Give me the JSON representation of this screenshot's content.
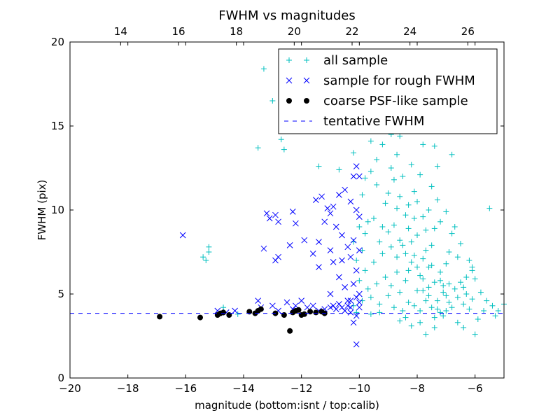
{
  "chart_data": {
    "type": "scatter",
    "title": "FWHM vs magnitudes",
    "xlabel": "magnitude (bottom:isnt / top:calib)",
    "ylabel": "FWHM (pix)",
    "xlim": [
      -20,
      -5
    ],
    "ylim": [
      0,
      20
    ],
    "xticks": [
      "-20",
      "-18",
      "-16",
      "-14",
      "-12",
      "-10",
      "-8",
      "-6"
    ],
    "xtick_values": [
      -20,
      -18,
      -16,
      -14,
      -12,
      -10,
      -8,
      -6
    ],
    "yticks": [
      "0",
      "5",
      "10",
      "15",
      "20"
    ],
    "ytick_values": [
      0,
      5,
      10,
      15,
      20
    ],
    "top_axis": {
      "ticks": [
        "14",
        "16",
        "18",
        "20",
        "22",
        "24",
        "26"
      ],
      "tick_values": [
        14,
        16,
        18,
        20,
        22,
        24,
        26
      ],
      "offset": 32.25
    },
    "legend": {
      "position": "top-right",
      "entries": [
        {
          "label": "all sample",
          "marker": "plus",
          "color": "#00bfbf"
        },
        {
          "label": "sample for rough FWHM",
          "marker": "x",
          "color": "#0000ff"
        },
        {
          "label": "coarse PSF-like sample",
          "marker": "dot",
          "color": "#000000"
        },
        {
          "label": "tentative FWHM",
          "marker": "dashed-line",
          "color": "#0000ff"
        }
      ]
    },
    "colors": {
      "all": "#00bfbf",
      "rough": "#0000ff",
      "psf": "#000000",
      "line": "#0000ff"
    },
    "tentative_fwhm": 3.85,
    "series": [
      {
        "name": "all sample",
        "points": [
          [
            -13.3,
            18.4
          ],
          [
            -13.0,
            16.5
          ],
          [
            -12.7,
            14.2
          ],
          [
            -13.5,
            13.7
          ],
          [
            -12.6,
            13.6
          ],
          [
            -11.4,
            12.6
          ],
          [
            -10.7,
            12.4
          ],
          [
            -10.2,
            13.4
          ],
          [
            -9.9,
            14.7
          ],
          [
            -9.6,
            14.1
          ],
          [
            -9.2,
            13.9
          ],
          [
            -8.9,
            14.5
          ],
          [
            -8.6,
            14.4
          ],
          [
            -8.3,
            16.4
          ],
          [
            -8.0,
            15.0
          ],
          [
            -7.8,
            13.9
          ],
          [
            -7.4,
            13.8
          ],
          [
            -7.3,
            12.6
          ],
          [
            -6.8,
            13.3
          ],
          [
            -5.5,
            10.1
          ],
          [
            -15.4,
            7.2
          ],
          [
            -15.2,
            7.5
          ],
          [
            -15.2,
            7.8
          ],
          [
            -15.3,
            7.0
          ],
          [
            -14.7,
            4.2
          ],
          [
            -14.2,
            3.8
          ],
          [
            -6.1,
            6.6
          ],
          [
            -6.1,
            6.4
          ],
          [
            -6.9,
            7.5
          ],
          [
            -7.0,
            6.8
          ],
          [
            -5.4,
            4.3
          ],
          [
            -5.2,
            4.0
          ],
          [
            -5.0,
            4.4
          ],
          [
            -6.4,
            3.0
          ],
          [
            -7.7,
            2.6
          ],
          [
            -6.0,
            2.6
          ],
          [
            -10.0,
            9.0
          ],
          [
            -9.8,
            8.6
          ],
          [
            -9.7,
            9.3
          ],
          [
            -9.5,
            9.5
          ],
          [
            -9.3,
            8.1
          ],
          [
            -9.1,
            10.4
          ],
          [
            -9.0,
            8.7
          ],
          [
            -8.8,
            9.1
          ],
          [
            -8.7,
            7.2
          ],
          [
            -8.6,
            10.8
          ],
          [
            -8.5,
            7.9
          ],
          [
            -8.4,
            9.7
          ],
          [
            -8.3,
            6.4
          ],
          [
            -8.2,
            8.1
          ],
          [
            -8.1,
            7.3
          ],
          [
            -8.0,
            10.5
          ],
          [
            -7.9,
            6.1
          ],
          [
            -7.8,
            7.1
          ],
          [
            -7.7,
            8.8
          ],
          [
            -7.6,
            5.4
          ],
          [
            -7.5,
            7.9
          ],
          [
            -7.4,
            5.7
          ],
          [
            -7.3,
            4.6
          ],
          [
            -7.2,
            6.3
          ],
          [
            -7.1,
            5.1
          ],
          [
            -7.0,
            4.9
          ],
          [
            -6.9,
            5.6
          ],
          [
            -6.8,
            4.2
          ],
          [
            -6.7,
            5.3
          ],
          [
            -6.6,
            4.8
          ],
          [
            -6.5,
            5.7
          ],
          [
            -6.4,
            4.4
          ],
          [
            -6.3,
            5.0
          ],
          [
            -6.2,
            4.1
          ],
          [
            -9.9,
            7.6
          ],
          [
            -9.8,
            6.4
          ],
          [
            -9.7,
            5.3
          ],
          [
            -9.6,
            4.8
          ],
          [
            -9.5,
            6.9
          ],
          [
            -9.4,
            5.6
          ],
          [
            -9.3,
            4.4
          ],
          [
            -9.2,
            7.4
          ],
          [
            -9.1,
            6.0
          ],
          [
            -9.0,
            4.9
          ],
          [
            -8.9,
            5.5
          ],
          [
            -8.8,
            4.2
          ],
          [
            -8.7,
            6.3
          ],
          [
            -8.6,
            5.1
          ],
          [
            -8.5,
            4.0
          ],
          [
            -8.4,
            5.8
          ],
          [
            -8.3,
            4.5
          ],
          [
            -8.2,
            6.9
          ],
          [
            -8.1,
            4.3
          ],
          [
            -8.0,
            5.2
          ],
          [
            -7.9,
            4.0
          ],
          [
            -7.8,
            5.9
          ],
          [
            -7.7,
            4.6
          ],
          [
            -7.6,
            6.6
          ],
          [
            -7.5,
            4.2
          ],
          [
            -7.4,
            3.6
          ],
          [
            -7.3,
            4.1
          ],
          [
            -7.2,
            3.9
          ],
          [
            -7.1,
            3.7
          ],
          [
            -7.0,
            4.0
          ],
          [
            -8.6,
            3.4
          ],
          [
            -8.2,
            3.1
          ],
          [
            -7.9,
            3.3
          ],
          [
            -9.6,
            3.8
          ],
          [
            -10.1,
            3.9
          ],
          [
            -9.9,
            10.9
          ],
          [
            -9.4,
            11.5
          ],
          [
            -8.8,
            11.8
          ],
          [
            -8.5,
            12.0
          ],
          [
            -9.6,
            12.3
          ],
          [
            -8.9,
            12.5
          ],
          [
            -8.1,
            11.1
          ],
          [
            -7.6,
            10.0
          ],
          [
            -7.2,
            9.3
          ],
          [
            -6.8,
            8.6
          ],
          [
            -6.6,
            7.2
          ],
          [
            -6.3,
            6.0
          ],
          [
            -10.2,
            8.1
          ],
          [
            -10.1,
            7.0
          ],
          [
            -10.0,
            5.8
          ],
          [
            -9.9,
            4.6
          ],
          [
            -10.2,
            4.3
          ],
          [
            -9.8,
            11.9
          ],
          [
            -9.4,
            13.0
          ],
          [
            -8.7,
            13.3
          ],
          [
            -8.2,
            12.7
          ],
          [
            -7.9,
            12.1
          ],
          [
            -7.5,
            11.4
          ],
          [
            -7.3,
            10.6
          ],
          [
            -7.0,
            9.9
          ],
          [
            -6.7,
            9.0
          ],
          [
            -6.5,
            8.0
          ],
          [
            -6.2,
            7.0
          ],
          [
            -6.0,
            5.9
          ],
          [
            -5.8,
            5.1
          ],
          [
            -5.6,
            4.6
          ],
          [
            -5.9,
            3.5
          ],
          [
            -6.6,
            3.3
          ],
          [
            -7.4,
            3.0
          ],
          [
            -8.4,
            3.6
          ],
          [
            -9.3,
            3.9
          ],
          [
            -8.0,
            8.5
          ],
          [
            -7.7,
            7.6
          ],
          [
            -7.5,
            6.7
          ],
          [
            -7.2,
            5.8
          ],
          [
            -8.3,
            8.9
          ],
          [
            -8.6,
            8.2
          ],
          [
            -8.9,
            7.8
          ],
          [
            -9.2,
            9.0
          ],
          [
            -8.0,
            6.6
          ],
          [
            -7.8,
            5.2
          ],
          [
            -8.4,
            7.4
          ],
          [
            -7.6,
            4.9
          ],
          [
            -7.1,
            5.5
          ],
          [
            -6.9,
            4.5
          ],
          [
            -8.1,
            9.5
          ],
          [
            -8.7,
            10.1
          ],
          [
            -9.0,
            11.0
          ],
          [
            -8.3,
            10.3
          ],
          [
            -7.8,
            9.6
          ],
          [
            -7.4,
            8.9
          ],
          [
            -6.4,
            5.4
          ],
          [
            -6.1,
            4.7
          ],
          [
            -5.7,
            4.0
          ],
          [
            -5.3,
            3.7
          ]
        ]
      },
      {
        "name": "sample for rough FWHM",
        "points": [
          [
            -16.1,
            8.5
          ],
          [
            -13.2,
            9.8
          ],
          [
            -13.1,
            9.5
          ],
          [
            -12.9,
            9.7
          ],
          [
            -12.8,
            9.3
          ],
          [
            -13.3,
            7.7
          ],
          [
            -12.8,
            7.2
          ],
          [
            -12.9,
            7.0
          ],
          [
            -12.3,
            9.9
          ],
          [
            -12.2,
            9.2
          ],
          [
            -12.4,
            7.9
          ],
          [
            -11.9,
            8.2
          ],
          [
            -11.5,
            10.6
          ],
          [
            -11.3,
            10.8
          ],
          [
            -11.1,
            10.1
          ],
          [
            -11.2,
            9.3
          ],
          [
            -10.9,
            10.2
          ],
          [
            -10.7,
            10.9
          ],
          [
            -10.5,
            11.2
          ],
          [
            -10.3,
            10.5
          ],
          [
            -10.1,
            10.0
          ],
          [
            -10.0,
            9.6
          ],
          [
            -10.2,
            12.0
          ],
          [
            -10.0,
            12.0
          ],
          [
            -10.1,
            12.6
          ],
          [
            -11.0,
            9.8
          ],
          [
            -10.8,
            9.0
          ],
          [
            -10.6,
            8.5
          ],
          [
            -10.4,
            7.8
          ],
          [
            -10.3,
            7.2
          ],
          [
            -11.4,
            8.1
          ],
          [
            -11.6,
            7.4
          ],
          [
            -11.0,
            7.6
          ],
          [
            -10.9,
            6.9
          ],
          [
            -10.7,
            6.0
          ],
          [
            -10.5,
            5.4
          ],
          [
            -10.4,
            4.6
          ],
          [
            -10.3,
            4.2
          ],
          [
            -10.2,
            5.6
          ],
          [
            -10.1,
            6.4
          ],
          [
            -10.0,
            5.0
          ],
          [
            -10.6,
            7.0
          ],
          [
            -10.2,
            8.2
          ],
          [
            -10.0,
            7.6
          ],
          [
            -10.1,
            4.8
          ],
          [
            -10.4,
            4.3
          ],
          [
            -11.4,
            6.6
          ],
          [
            -11.0,
            5.0
          ],
          [
            -10.9,
            4.3
          ],
          [
            -10.8,
            4.1
          ],
          [
            -10.7,
            4.4
          ],
          [
            -10.5,
            4.0
          ],
          [
            -10.3,
            3.9
          ],
          [
            -10.1,
            3.7
          ],
          [
            -10.0,
            4.2
          ],
          [
            -13.5,
            4.6
          ],
          [
            -13.4,
            4.2
          ],
          [
            -13.0,
            4.3
          ],
          [
            -12.8,
            4.0
          ],
          [
            -12.5,
            4.5
          ],
          [
            -12.2,
            4.3
          ],
          [
            -12.0,
            4.6
          ],
          [
            -11.8,
            4.2
          ],
          [
            -11.6,
            4.3
          ],
          [
            -11.2,
            4.1
          ],
          [
            -11.0,
            4.2
          ],
          [
            -14.3,
            4.0
          ],
          [
            -14.6,
            3.9
          ],
          [
            -14.9,
            4.0
          ],
          [
            -12.3,
            4.1
          ],
          [
            -11.4,
            4.0
          ],
          [
            -10.2,
            3.3
          ],
          [
            -10.1,
            2.0
          ],
          [
            -10.3,
            4.6
          ],
          [
            -10.0,
            4.5
          ],
          [
            -10.6,
            4.2
          ]
        ]
      },
      {
        "name": "coarse PSF-like sample",
        "points": [
          [
            -16.9,
            3.65
          ],
          [
            -15.5,
            3.6
          ],
          [
            -14.9,
            3.75
          ],
          [
            -14.8,
            3.85
          ],
          [
            -14.7,
            3.9
          ],
          [
            -14.5,
            3.75
          ],
          [
            -13.8,
            3.95
          ],
          [
            -13.6,
            3.85
          ],
          [
            -13.5,
            4.0
          ],
          [
            -13.4,
            4.1
          ],
          [
            -12.9,
            3.85
          ],
          [
            -12.6,
            3.75
          ],
          [
            -12.3,
            3.9
          ],
          [
            -12.2,
            4.0
          ],
          [
            -12.1,
            4.05
          ],
          [
            -12.0,
            3.75
          ],
          [
            -11.9,
            3.8
          ],
          [
            -11.7,
            3.95
          ],
          [
            -11.5,
            3.9
          ],
          [
            -11.3,
            3.95
          ],
          [
            -11.2,
            3.85
          ],
          [
            -12.4,
            2.8
          ]
        ]
      }
    ]
  }
}
